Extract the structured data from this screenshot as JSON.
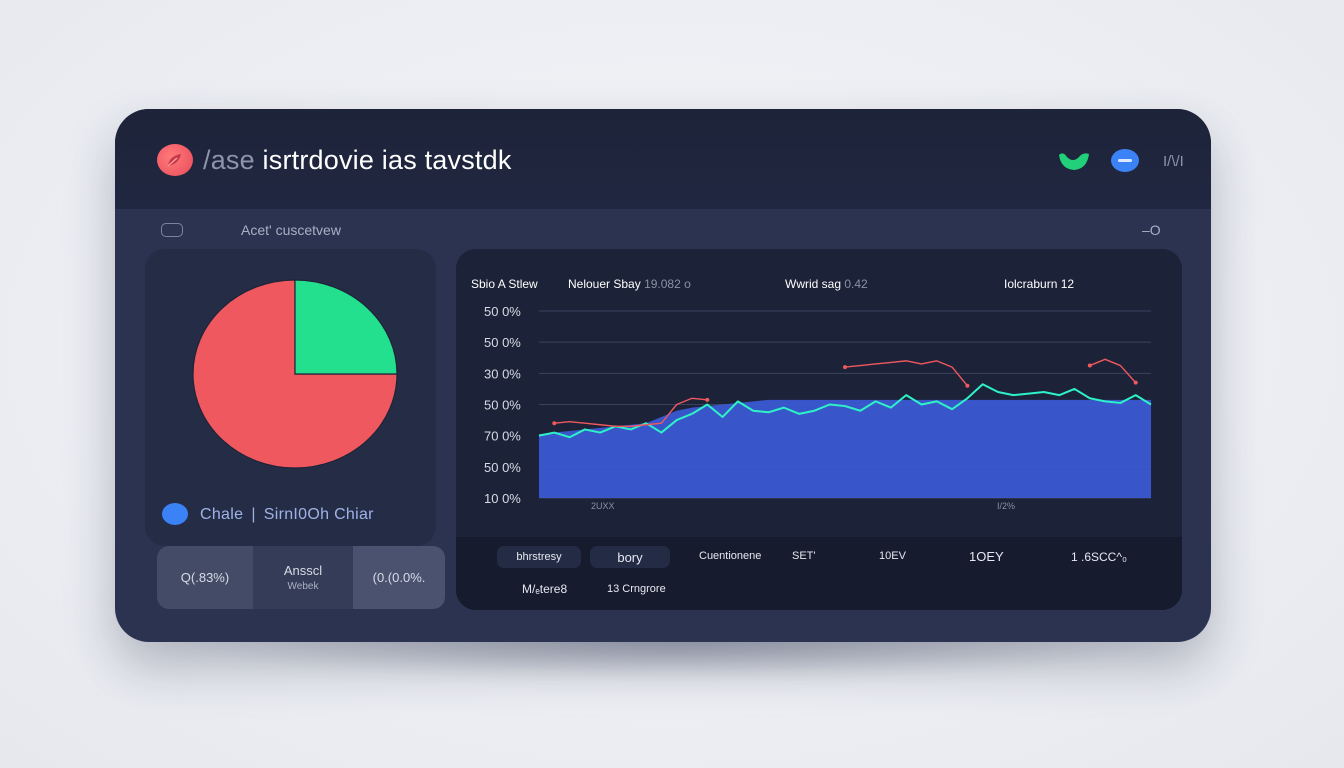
{
  "header": {
    "title_prefix": "/ase",
    "title_main": "isrtrdovie ias tavstdk",
    "right_label": "I/\\/I",
    "icons": [
      "brand-logo-icon",
      "leaf-icon",
      "minus-circle-icon"
    ]
  },
  "subbar": {
    "title": "Acet' cuscetvew",
    "right_text": "–O"
  },
  "pie_panel": {
    "legend": {
      "a": "Chale",
      "b": "SirnI0Oh Chiar"
    },
    "tiles": [
      {
        "value": "Q(.83%)",
        "sub": ""
      },
      {
        "value": "Ansscl",
        "sub": "Webek"
      },
      {
        "value": "(0.(0.0%.",
        "sub": ""
      }
    ]
  },
  "chart_panel": {
    "headers": {
      "h1": "Sbio A Stlew",
      "h2": "Nelouer Sbay",
      "h2_muted": "19.082 o",
      "h3": "Wwrid sag",
      "h3_muted": "0.42",
      "h4": "Iolcraburn 12"
    },
    "table": {
      "row1": [
        "bhrstresy",
        "bory",
        "Cuentionene",
        "SET'",
        "10EV",
        "1OEY",
        "1 .6SCC^₀"
      ],
      "row2": [
        "M/ₑtere8",
        "13 Crngrore"
      ]
    }
  },
  "colors": {
    "red": "#f0585f",
    "green": "#23e08f",
    "blue": "#3b5bd6",
    "cyan": "#2ef2c7"
  },
  "chart_data": [
    {
      "type": "pie",
      "slices": [
        {
          "value": 75,
          "color": "#f0585f"
        },
        {
          "value": 25,
          "color": "#23e08f"
        }
      ]
    },
    {
      "type": "area",
      "y_tick_labels": [
        "50 0%",
        "50 0%",
        "30 0%",
        "50 0%",
        "70 0%",
        "50 0%",
        "10 0%"
      ],
      "x_tick_labels": [
        "2UXX",
        "I/2%"
      ],
      "ylim": [
        0,
        60
      ],
      "grid": true,
      "series": [
        {
          "role": "area",
          "color": "#3b5bd6",
          "values": [
            20.5,
            21,
            21.5,
            22,
            22.5,
            23,
            23.5,
            24,
            26,
            28,
            29,
            29.5,
            30,
            30.5,
            31,
            31.5,
            31.5,
            31.5,
            31.5,
            31.5,
            31.5,
            31.5,
            31.5,
            31.5,
            31.5,
            31.5,
            31.5,
            31.5,
            31.5,
            31.5,
            31.5,
            31.5,
            31.5,
            31.5,
            31.5,
            31.5,
            31.5,
            31.5,
            31.5,
            31.5,
            31.5
          ]
        },
        {
          "role": "line",
          "color": "#2ef2c7",
          "values": [
            20,
            21,
            19.5,
            22,
            21,
            23,
            22,
            24,
            21,
            25,
            27,
            30,
            26,
            31,
            28,
            27.5,
            29,
            27,
            28,
            30,
            29.5,
            28,
            31,
            29,
            33,
            30,
            31,
            28.5,
            32,
            36.5,
            34,
            33,
            33.5,
            34,
            33,
            35,
            32,
            31,
            30.5,
            33,
            30
          ]
        },
        {
          "role": "line",
          "color": "#f0585f",
          "values": [
            null,
            24,
            24.5,
            24,
            23.5,
            23,
            23,
            23.5,
            24,
            30,
            32,
            31.5,
            null,
            null,
            null,
            null,
            null,
            null,
            null,
            null,
            42,
            42.5,
            43,
            43.5,
            44,
            43,
            44,
            42,
            36,
            null,
            null,
            null,
            null,
            null,
            null,
            null,
            42.5,
            44.5,
            42.5,
            37,
            null
          ]
        }
      ]
    }
  ]
}
